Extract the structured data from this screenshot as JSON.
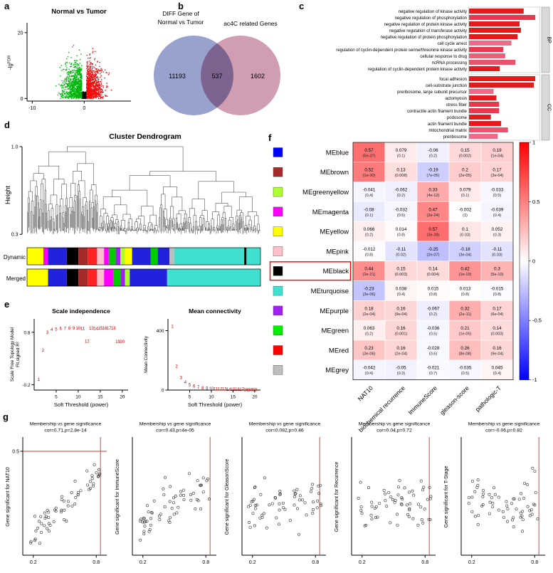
{
  "panel_labels": {
    "a": "a",
    "b": "b",
    "c": "c",
    "d": "d",
    "e": "e",
    "f": "f",
    "g": "g"
  },
  "volcano": {
    "title": "Normal vs Tumor",
    "ylabel_prefix": "-lg",
    "ylabel_sup": "FDR",
    "xlim": [
      -11,
      9
    ],
    "ylim": [
      0,
      23
    ],
    "yticks": [
      0,
      20
    ],
    "xticks": [
      -10,
      0
    ],
    "colors": {
      "down": "#00b50c",
      "up": "#f10c0c",
      "ns": "#0a0a0a"
    },
    "counts": {
      "down": 900,
      "up": 900,
      "ns": 450
    },
    "seed": 42
  },
  "venn": {
    "left_label_line1": "DIFF Gene of",
    "left_label_line2": "Normal vs Tumor",
    "right_label": "ac4C related Genes",
    "left_value": "11193",
    "overlap_value": "537",
    "right_value": "1602",
    "left_color": "#8790c7",
    "right_color": "#c98ca4"
  },
  "go_bars": {
    "strip_bg": "#d9d9d9",
    "groups": [
      {
        "name": "BP",
        "items": [
          {
            "label": "negative regulation of kinase activity",
            "value": 0.8,
            "color": "#e41a1c"
          },
          {
            "label": "negative regulation of phosphorylation",
            "value": 0.97,
            "color": "#e8384f"
          },
          {
            "label": "negative regulation of protein kinase activity",
            "value": 0.74,
            "color": "#e41a1c"
          },
          {
            "label": "negative regulation of transferase activity",
            "value": 0.76,
            "color": "#e41a1c"
          },
          {
            "label": "negative regulation of protein phosphorylation",
            "value": 0.71,
            "color": "#e41a1c"
          },
          {
            "label": "cell cycle arrest",
            "value": 0.62,
            "color": "#ef6a88"
          },
          {
            "label": "regulation of cyclin-dependent protein serine/threonine kinase activity",
            "value": 0.5,
            "color": "#e8384f"
          },
          {
            "label": "cellular response to drug",
            "value": 0.53,
            "color": "#ee5d7a"
          },
          {
            "label": "ncRNA processing",
            "value": 0.68,
            "color": "#ed516e"
          },
          {
            "label": "regulation of cyclin-dependent protein kinase activity",
            "value": 0.45,
            "color": "#e41a1c"
          }
        ]
      },
      {
        "name": "CC",
        "items": [
          {
            "label": "focal adhesion",
            "value": 0.97,
            "color": "#e41a1c"
          },
          {
            "label": "cell-substrate junction",
            "value": 0.95,
            "color": "#e41a1c"
          },
          {
            "label": "preribosome, large subunit precursor",
            "value": 0.36,
            "color": "#ef6a88"
          },
          {
            "label": "actomyosin",
            "value": 0.4,
            "color": "#e41a1c"
          },
          {
            "label": "stress fiber",
            "value": 0.44,
            "color": "#e8384f"
          },
          {
            "label": "contractile actin filament bundle",
            "value": 0.44,
            "color": "#e8384f"
          },
          {
            "label": "podosome",
            "value": 0.32,
            "color": "#e41a1c"
          },
          {
            "label": "actin filament bundle",
            "value": 0.47,
            "color": "#e41a1c"
          },
          {
            "label": "mitochondrial matrix",
            "value": 0.57,
            "color": "#ed516e"
          },
          {
            "label": "preribosome",
            "value": 0.42,
            "color": "#ef6a88"
          }
        ]
      }
    ]
  },
  "dendrogram": {
    "title": "Cluster Dendrogram",
    "ylabel": "Height",
    "yticks": [
      1.0,
      0.3
    ],
    "seed": 7,
    "bands": [
      {
        "label": "Dynamic",
        "segments": [
          [
            "#ffff00",
            7
          ],
          [
            "#ff00ff",
            2
          ],
          [
            "#2222dd",
            8
          ],
          [
            "#000000",
            5
          ],
          [
            "#a52a2a",
            4
          ],
          [
            "#ff2222",
            4
          ],
          [
            "#ffc0cb",
            3
          ],
          [
            "#ff00ff",
            2
          ],
          [
            "#00cc00",
            3
          ],
          [
            "#a020f0",
            2
          ],
          [
            "#adff2f",
            2
          ],
          [
            "#ffff00",
            3
          ],
          [
            "#2222dd",
            8
          ],
          [
            "#00cc00",
            3
          ],
          [
            "#2222dd",
            5
          ],
          [
            "#bebebe",
            2
          ],
          [
            "#40e0d0",
            30
          ],
          [
            "#000000",
            1
          ],
          [
            "#40e0d0",
            6
          ]
        ]
      },
      {
        "label": "Merged",
        "segments": [
          [
            "#ffff00",
            9
          ],
          [
            "#2222dd",
            8
          ],
          [
            "#000000",
            5
          ],
          [
            "#a52a2a",
            4
          ],
          [
            "#ff2222",
            4
          ],
          [
            "#ffc0cb",
            3
          ],
          [
            "#ff00ff",
            4
          ],
          [
            "#00cc00",
            3
          ],
          [
            "#a020f0",
            2
          ],
          [
            "#adff2f",
            2
          ],
          [
            "#2222dd",
            16
          ],
          [
            "#40e0d0",
            40
          ]
        ]
      }
    ]
  },
  "soft_threshold": {
    "point_color": "#cc0000",
    "left": {
      "title": "Scale independence",
      "xlabel": "Soft Threshold (power)",
      "ylabel1": "Scale Free Topology Model",
      "ylabel2": "Fit,signed R²",
      "xticks": [
        5,
        10,
        15,
        20
      ],
      "yticks": [
        0.8,
        -0.2
      ],
      "points": [
        [
          1,
          -0.1
        ],
        [
          2,
          0.46
        ],
        [
          3,
          0.8
        ],
        [
          4,
          0.85
        ],
        [
          5,
          0.86
        ],
        [
          6,
          0.87
        ],
        [
          7,
          0.87
        ],
        [
          8,
          0.88
        ],
        [
          9,
          0.88
        ],
        [
          10,
          0.88
        ],
        [
          11,
          0.87
        ],
        [
          12,
          0.63
        ],
        [
          13,
          0.88
        ],
        [
          14,
          0.87
        ],
        [
          15,
          0.88
        ],
        [
          16,
          0.88
        ],
        [
          17,
          0.88
        ],
        [
          18,
          0.88
        ],
        [
          19,
          0.62
        ],
        [
          20,
          0.62
        ]
      ]
    },
    "right": {
      "title": "Mean connectivity",
      "xlabel": "Soft Threshold (power)",
      "ylabel1": "Mean Connectivity",
      "xticks": [
        5,
        10,
        15,
        20
      ],
      "yticks": [
        400,
        0
      ],
      "points": [
        [
          1,
          430
        ],
        [
          2,
          160
        ],
        [
          3,
          85
        ],
        [
          4,
          52
        ],
        [
          5,
          36
        ],
        [
          6,
          26
        ],
        [
          7,
          19
        ],
        [
          8,
          15
        ],
        [
          9,
          12
        ],
        [
          10,
          9
        ],
        [
          11,
          8
        ],
        [
          12,
          7
        ],
        [
          13,
          6
        ],
        [
          14,
          5
        ],
        [
          15,
          5
        ],
        [
          16,
          4
        ],
        [
          17,
          4
        ],
        [
          18,
          3
        ],
        [
          19,
          3
        ],
        [
          20,
          2
        ]
      ]
    }
  },
  "heatmap": {
    "columns": [
      "NAT10",
      "biochemical recurrence",
      "ImmuneScore",
      "gleason-score",
      "pathologic-T"
    ],
    "legend_ticks": [
      1,
      0.5,
      0,
      -0.5,
      -1
    ],
    "highlight_row": "MEblack",
    "rows": [
      {
        "name": "MEblue",
        "chip": "#0000ff",
        "cells": [
          {
            "v": 0.57,
            "p": "5e-37"
          },
          {
            "v": 0.079,
            "p": "0.1"
          },
          {
            "v": -0.06,
            "p": "0.2"
          },
          {
            "v": 0.15,
            "p": "0.002"
          },
          {
            "v": 0.19,
            "p": "1e-04"
          }
        ]
      },
      {
        "name": "MEbrown",
        "chip": "#a52a2a",
        "cells": [
          {
            "v": 0.52,
            "p": "1e-30"
          },
          {
            "v": 0.13,
            "p": "0.008"
          },
          {
            "v": -0.19,
            "p": "7e-05"
          },
          {
            "v": 0.2,
            "p": "2e-05"
          },
          {
            "v": 0.17,
            "p": "3e-04"
          }
        ]
      },
      {
        "name": "MEgreenyellow",
        "chip": "#adff2f",
        "cells": [
          {
            "v": -0.041,
            "p": "0.4"
          },
          {
            "v": -0.062,
            "p": "0.2"
          },
          {
            "v": 0.33,
            "p": "4e-12"
          },
          {
            "v": 0.079,
            "p": "0.1"
          },
          {
            "v": -0.033,
            "p": "0.5"
          }
        ]
      },
      {
        "name": "MEmagenta",
        "chip": "#ff00ff",
        "cells": [
          {
            "v": -0.08,
            "p": "0.1"
          },
          {
            "v": -0.032,
            "p": "0.5"
          },
          {
            "v": 0.47,
            "p": "2e-24"
          },
          {
            "v": -0.002,
            "p": "1"
          },
          {
            "v": -0.039,
            "p": "0.4"
          }
        ]
      },
      {
        "name": "MEyellow",
        "chip": "#ffff00",
        "cells": [
          {
            "v": 0.066,
            "p": "0.2"
          },
          {
            "v": 0.014,
            "p": "0.8"
          },
          {
            "v": 0.57,
            "p": "3e-38"
          },
          {
            "v": 0.1,
            "p": "0.03"
          },
          {
            "v": 0.052,
            "p": "0.3"
          }
        ]
      },
      {
        "name": "MEpink",
        "chip": "#ffc0cb",
        "cells": [
          {
            "v": -0.012,
            "p": "0.8"
          },
          {
            "v": -0.11,
            "p": "0.02"
          },
          {
            "v": -0.25,
            "p": "2e-07"
          },
          {
            "v": -0.18,
            "p": "3e-04"
          },
          {
            "v": -0.11,
            "p": "0.03"
          }
        ]
      },
      {
        "name": "MEblack",
        "chip": "#000000",
        "cells": [
          {
            "v": 0.44,
            "p": "2e-21"
          },
          {
            "v": 0.15,
            "p": "0.003"
          },
          {
            "v": 0.14,
            "p": "0.004"
          },
          {
            "v": 0.42,
            "p": "1e-19"
          },
          {
            "v": 0.3,
            "p": "5e-10"
          }
        ]
      },
      {
        "name": "MEturquoise",
        "chip": "#40e0d0",
        "cells": [
          {
            "v": -0.23,
            "p": "3e-06"
          },
          {
            "v": 0.038,
            "p": "0.4"
          },
          {
            "v": 0.015,
            "p": "0.8"
          },
          {
            "v": 0.013,
            "p": "0.8"
          },
          {
            "v": -0.015,
            "p": "0.8"
          }
        ]
      },
      {
        "name": "MEpurple",
        "chip": "#a020f0",
        "cells": [
          {
            "v": 0.18,
            "p": "2e-04"
          },
          {
            "v": 0.16,
            "p": "9e-04"
          },
          {
            "v": -0.067,
            "p": "0.2"
          },
          {
            "v": 0.32,
            "p": "2e-11"
          },
          {
            "v": 0.17,
            "p": "6e-04"
          }
        ]
      },
      {
        "name": "MEgreen",
        "chip": "#00ee00",
        "cells": [
          {
            "v": 0.063,
            "p": "0.2"
          },
          {
            "v": 0.16,
            "p": "0.001"
          },
          {
            "v": -0.036,
            "p": "0.5"
          },
          {
            "v": 0.21,
            "p": "1e-05"
          },
          {
            "v": 0.14,
            "p": "0.003"
          }
        ]
      },
      {
        "name": "MEred",
        "chip": "#ff0000",
        "cells": [
          {
            "v": 0.23,
            "p": "3e-06"
          },
          {
            "v": 0.16,
            "p": "2e-04"
          },
          {
            "v": -0.028,
            "p": "0.6"
          },
          {
            "v": 0.26,
            "p": "8e-08"
          },
          {
            "v": 0.16,
            "p": "9e-04"
          }
        ]
      },
      {
        "name": "MEgrey",
        "chip": "#bebebe",
        "cells": [
          {
            "v": -0.042,
            "p": "0.4"
          },
          {
            "v": -0.05,
            "p": "0.3"
          },
          {
            "v": -0.021,
            "p": "0.7"
          },
          {
            "v": -0.035,
            "p": "0.5"
          },
          {
            "v": 0.045,
            "p": "0.4"
          }
        ]
      }
    ]
  },
  "membership_title": "Membership vs gene significance",
  "membership_plots": [
    {
      "subtitle": "cor=0.71,p=2.8e-14",
      "ylabel": "Gene significant for NAT10",
      "xticks": [
        0.2,
        0.8
      ],
      "ytick": "0.5",
      "cor": 0.71,
      "seed": 101
    },
    {
      "subtitle": "cor=0.43,p=4e-05",
      "ylabel": "Gene significant for ImmuneScore",
      "xticks": [
        0.2,
        0.8
      ],
      "cor": 0.43,
      "seed": 102
    },
    {
      "subtitle": "cor=0.082,p=0.46",
      "ylabel": "Gene significant for GleasonScore",
      "xticks": [
        0.2,
        0.8
      ],
      "cor": 0.082,
      "seed": 103
    },
    {
      "subtitle": "cor=0.04,p=0.72",
      "ylabel": "Gene significant for Recurrence",
      "xticks": [
        0.2,
        0.8
      ],
      "cor": 0.04,
      "seed": 104
    },
    {
      "subtitle": "cor=-0.06,p=0.82",
      "ylabel": "Gene significant for T-Stage",
      "xticks": [
        0.2,
        0.8
      ],
      "cor": -0.06,
      "seed": 105
    }
  ]
}
